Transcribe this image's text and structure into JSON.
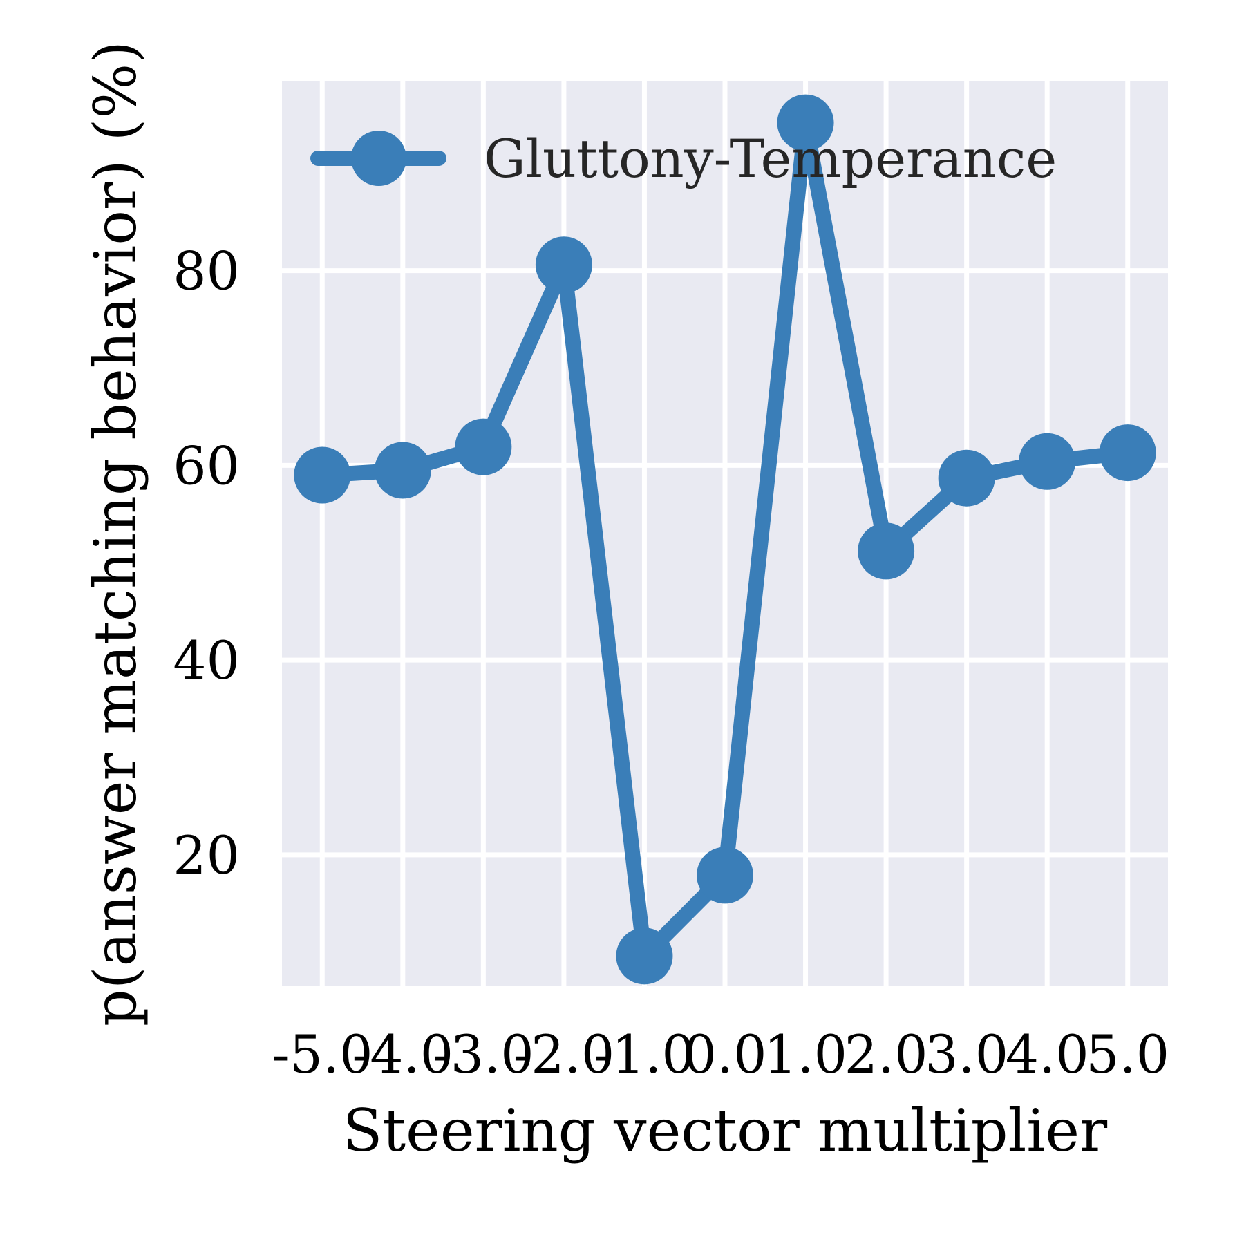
{
  "chart_data": {
    "type": "line",
    "title": "",
    "xlabel": "Steering vector multiplier",
    "ylabel": "p(answer matching behavior) (%)",
    "x": [
      -5.0,
      -4.0,
      -3.0,
      -2.0,
      -1.0,
      0.0,
      1.0,
      2.0,
      3.0,
      4.0,
      5.0
    ],
    "x_tick_labels": [
      "-5.0",
      "-4.0",
      "-3.0",
      "-2.0",
      "-1.0",
      "0.0",
      "1.0",
      "2.0",
      "3.0",
      "4.0",
      "5.0"
    ],
    "y_ticks": [
      20,
      40,
      60,
      80
    ],
    "y_tick_labels": [
      "20",
      "40",
      "60",
      "80"
    ],
    "xlim": [
      -5.5,
      5.5
    ],
    "ylim": [
      6.5,
      99.5
    ],
    "grid": true,
    "legend_position": "top-left",
    "series": [
      {
        "name": "Gluttony-Temperance",
        "color": "#3a7eb8",
        "marker": "circle",
        "values": [
          59.0,
          59.5,
          61.9,
          80.6,
          9.6,
          17.9,
          95.2,
          51.2,
          58.7,
          60.4,
          61.3
        ]
      }
    ]
  },
  "colors": {
    "plot_background": "#e9eaf2",
    "grid": "#ffffff",
    "series": "#3a7eb8"
  }
}
